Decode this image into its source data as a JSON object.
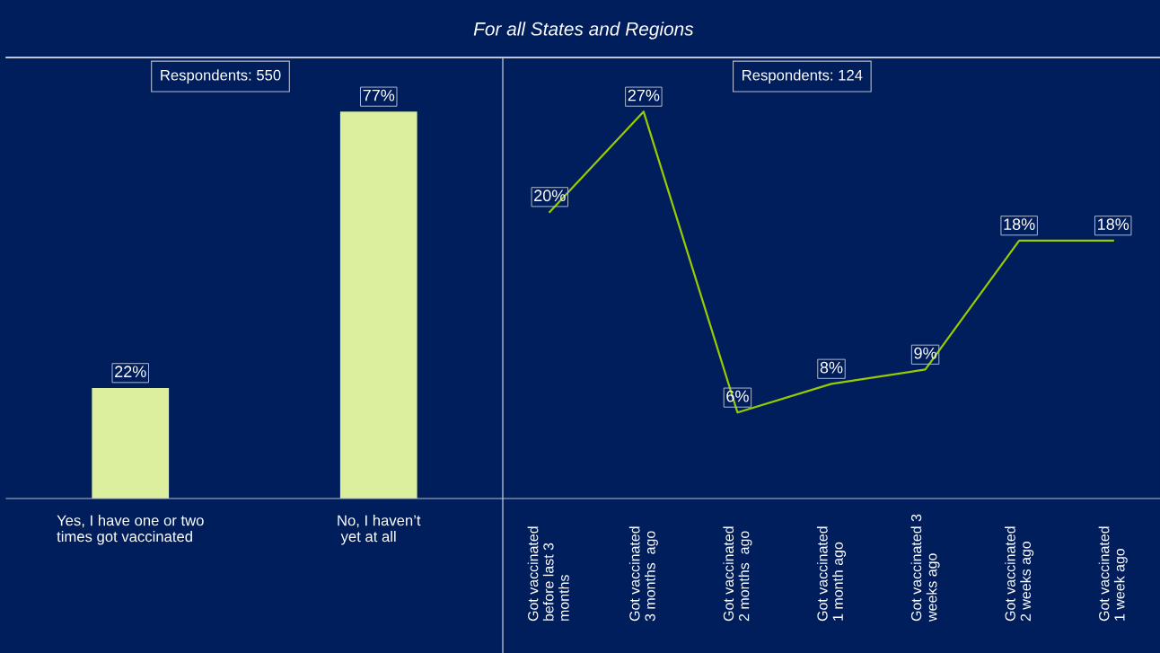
{
  "chart_data": [
    {
      "type": "bar",
      "categories": [
        "Yes, I have one or two\ntimes got vaccinated",
        "No, I haven’t\n yet at all"
      ],
      "values": [
        22,
        77
      ],
      "value_labels": [
        "22%",
        "77%"
      ],
      "color": "#dcef9e",
      "annotations": [
        "Respondents: 550"
      ]
    },
    {
      "type": "line",
      "title": "For all States and Regions",
      "categories": [
        "Got vaccinated\nbefore last 3\nmonths",
        "Got vaccinated\n3 months  ago",
        "Got vaccinated\n2 months  ago",
        "Got vaccinated\n1 month ago",
        "Got vaccinated 3\nweeks ago",
        "Got vaccinated\n2 weeks ago",
        "Got vaccinated\n1 week ago"
      ],
      "values": [
        20,
        27,
        6,
        8,
        9,
        18,
        18
      ],
      "value_labels": [
        "20%",
        "27%",
        "6%",
        "8%",
        "9%",
        "18%",
        "18%"
      ],
      "color": "#99cc00",
      "annotations": [
        "Respondents: 124"
      ]
    }
  ]
}
